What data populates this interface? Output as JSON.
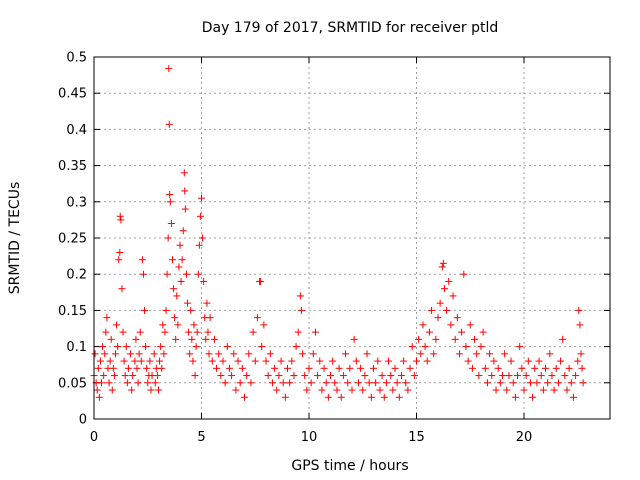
{
  "chart_data": {
    "type": "scatter",
    "title": "Day 179 of 2017, SRMTID for receiver ptld",
    "xlabel": "GPS time / hours",
    "ylabel": "SRMTID / TECUs",
    "xlim": [
      0,
      24
    ],
    "ylim": [
      0,
      0.5
    ],
    "xticks": [
      0,
      5,
      10,
      15,
      20
    ],
    "yticks": [
      0,
      0.05,
      0.1,
      0.15,
      0.2,
      0.25,
      0.3,
      0.35,
      0.4,
      0.45,
      0.5
    ],
    "grid": true,
    "marker": "plus",
    "color": "#ff0000",
    "series": [
      {
        "points": [
          [
            0.0,
            0.06
          ],
          [
            0.05,
            0.09
          ],
          [
            0.1,
            0.05
          ],
          [
            0.15,
            0.04
          ],
          [
            0.2,
            0.07
          ],
          [
            0.25,
            0.03
          ],
          [
            0.3,
            0.08
          ],
          [
            0.35,
            0.05
          ],
          [
            0.4,
            0.1
          ],
          [
            0.45,
            0.06
          ],
          [
            0.5,
            0.09
          ],
          [
            0.55,
            0.12
          ],
          [
            0.6,
            0.14
          ],
          [
            0.65,
            0.07
          ],
          [
            0.7,
            0.05
          ],
          [
            0.75,
            0.08
          ],
          [
            0.8,
            0.11
          ],
          [
            0.85,
            0.04
          ],
          [
            0.9,
            0.07
          ],
          [
            0.95,
            0.06
          ],
          [
            1.0,
            0.09
          ],
          [
            1.05,
            0.13
          ],
          [
            1.1,
            0.1
          ],
          [
            1.15,
            0.22
          ],
          [
            1.2,
            0.23
          ],
          [
            1.22,
            0.28
          ],
          [
            1.25,
            0.275
          ],
          [
            1.3,
            0.18
          ],
          [
            1.35,
            0.12
          ],
          [
            1.4,
            0.08
          ],
          [
            1.45,
            0.06
          ],
          [
            1.5,
            0.1
          ],
          [
            1.55,
            0.05
          ],
          [
            1.6,
            0.07
          ],
          [
            1.7,
            0.09
          ],
          [
            1.75,
            0.04
          ],
          [
            1.8,
            0.06
          ],
          [
            1.9,
            0.08
          ],
          [
            1.95,
            0.11
          ],
          [
            2.0,
            0.07
          ],
          [
            2.05,
            0.05
          ],
          [
            2.1,
            0.09
          ],
          [
            2.15,
            0.12
          ],
          [
            2.2,
            0.08
          ],
          [
            2.25,
            0.22
          ],
          [
            2.3,
            0.2
          ],
          [
            2.35,
            0.15
          ],
          [
            2.4,
            0.1
          ],
          [
            2.45,
            0.07
          ],
          [
            2.5,
            0.05
          ],
          [
            2.55,
            0.06
          ],
          [
            2.6,
            0.08
          ],
          [
            2.65,
            0.04
          ],
          [
            2.7,
            0.06
          ],
          [
            2.8,
            0.09
          ],
          [
            2.85,
            0.05
          ],
          [
            2.9,
            0.07
          ],
          [
            2.95,
            0.06
          ],
          [
            3.0,
            0.04
          ],
          [
            3.05,
            0.08
          ],
          [
            3.1,
            0.1
          ],
          [
            3.15,
            0.07
          ],
          [
            3.2,
            0.13
          ],
          [
            3.25,
            0.09
          ],
          [
            3.3,
            0.12
          ],
          [
            3.35,
            0.15
          ],
          [
            3.4,
            0.2
          ],
          [
            3.45,
            0.25
          ],
          [
            3.48,
            0.484
          ],
          [
            3.5,
            0.407
          ],
          [
            3.52,
            0.31
          ],
          [
            3.55,
            0.3
          ],
          [
            3.6,
            0.27
          ],
          [
            3.65,
            0.22
          ],
          [
            3.7,
            0.18
          ],
          [
            3.75,
            0.14
          ],
          [
            3.8,
            0.11
          ],
          [
            3.85,
            0.17
          ],
          [
            3.9,
            0.13
          ],
          [
            3.95,
            0.21
          ],
          [
            4.0,
            0.24
          ],
          [
            4.05,
            0.19
          ],
          [
            4.1,
            0.22
          ],
          [
            4.15,
            0.26
          ],
          [
            4.2,
            0.34
          ],
          [
            4.22,
            0.315
          ],
          [
            4.25,
            0.29
          ],
          [
            4.3,
            0.2
          ],
          [
            4.35,
            0.16
          ],
          [
            4.4,
            0.12
          ],
          [
            4.45,
            0.09
          ],
          [
            4.5,
            0.15
          ],
          [
            4.55,
            0.11
          ],
          [
            4.6,
            0.08
          ],
          [
            4.65,
            0.13
          ],
          [
            4.7,
            0.06
          ],
          [
            4.75,
            0.1
          ],
          [
            4.8,
            0.12
          ],
          [
            4.85,
            0.2
          ],
          [
            4.9,
            0.24
          ],
          [
            4.95,
            0.28
          ],
          [
            5.0,
            0.305
          ],
          [
            5.05,
            0.25
          ],
          [
            5.1,
            0.19
          ],
          [
            5.15,
            0.14
          ],
          [
            5.2,
            0.11
          ],
          [
            5.25,
            0.16
          ],
          [
            5.3,
            0.12
          ],
          [
            5.35,
            0.09
          ],
          [
            5.4,
            0.14
          ],
          [
            5.5,
            0.08
          ],
          [
            5.6,
            0.11
          ],
          [
            5.7,
            0.07
          ],
          [
            5.8,
            0.09
          ],
          [
            5.9,
            0.06
          ],
          [
            6.0,
            0.08
          ],
          [
            6.1,
            0.05
          ],
          [
            6.2,
            0.1
          ],
          [
            6.3,
            0.07
          ],
          [
            6.4,
            0.06
          ],
          [
            6.5,
            0.09
          ],
          [
            6.6,
            0.04
          ],
          [
            6.7,
            0.08
          ],
          [
            6.8,
            0.05
          ],
          [
            6.9,
            0.07
          ],
          [
            7.0,
            0.03
          ],
          [
            7.1,
            0.06
          ],
          [
            7.2,
            0.09
          ],
          [
            7.3,
            0.05
          ],
          [
            7.4,
            0.12
          ],
          [
            7.5,
            0.08
          ],
          [
            7.6,
            0.14
          ],
          [
            7.7,
            0.19
          ],
          [
            7.75,
            0.19
          ],
          [
            7.8,
            0.1
          ],
          [
            7.9,
            0.13
          ],
          [
            8.0,
            0.08
          ],
          [
            8.1,
            0.06
          ],
          [
            8.2,
            0.09
          ],
          [
            8.3,
            0.05
          ],
          [
            8.4,
            0.07
          ],
          [
            8.5,
            0.04
          ],
          [
            8.6,
            0.06
          ],
          [
            8.7,
            0.08
          ],
          [
            8.8,
            0.05
          ],
          [
            8.9,
            0.03
          ],
          [
            9.0,
            0.07
          ],
          [
            9.1,
            0.05
          ],
          [
            9.2,
            0.08
          ],
          [
            9.3,
            0.06
          ],
          [
            9.4,
            0.1
          ],
          [
            9.5,
            0.12
          ],
          [
            9.6,
            0.17
          ],
          [
            9.65,
            0.15
          ],
          [
            9.7,
            0.09
          ],
          [
            9.8,
            0.06
          ],
          [
            9.9,
            0.04
          ],
          [
            10.0,
            0.07
          ],
          [
            10.1,
            0.05
          ],
          [
            10.2,
            0.09
          ],
          [
            10.3,
            0.12
          ],
          [
            10.4,
            0.06
          ],
          [
            10.5,
            0.08
          ],
          [
            10.6,
            0.04
          ],
          [
            10.7,
            0.07
          ],
          [
            10.8,
            0.05
          ],
          [
            10.9,
            0.03
          ],
          [
            11.0,
            0.06
          ],
          [
            11.1,
            0.08
          ],
          [
            11.2,
            0.05
          ],
          [
            11.3,
            0.04
          ],
          [
            11.4,
            0.07
          ],
          [
            11.5,
            0.03
          ],
          [
            11.6,
            0.06
          ],
          [
            11.7,
            0.09
          ],
          [
            11.8,
            0.05
          ],
          [
            11.9,
            0.07
          ],
          [
            12.0,
            0.04
          ],
          [
            12.1,
            0.11
          ],
          [
            12.2,
            0.08
          ],
          [
            12.3,
            0.05
          ],
          [
            12.4,
            0.07
          ],
          [
            12.5,
            0.04
          ],
          [
            12.6,
            0.06
          ],
          [
            12.7,
            0.09
          ],
          [
            12.8,
            0.05
          ],
          [
            12.9,
            0.03
          ],
          [
            13.0,
            0.07
          ],
          [
            13.1,
            0.05
          ],
          [
            13.2,
            0.08
          ],
          [
            13.3,
            0.04
          ],
          [
            13.4,
            0.06
          ],
          [
            13.5,
            0.03
          ],
          [
            13.6,
            0.05
          ],
          [
            13.7,
            0.08
          ],
          [
            13.8,
            0.06
          ],
          [
            13.9,
            0.04
          ],
          [
            14.0,
            0.07
          ],
          [
            14.1,
            0.05
          ],
          [
            14.2,
            0.03
          ],
          [
            14.3,
            0.06
          ],
          [
            14.4,
            0.08
          ],
          [
            14.5,
            0.05
          ],
          [
            14.6,
            0.04
          ],
          [
            14.7,
            0.07
          ],
          [
            14.8,
            0.1
          ],
          [
            14.9,
            0.06
          ],
          [
            15.0,
            0.08
          ],
          [
            15.1,
            0.11
          ],
          [
            15.2,
            0.09
          ],
          [
            15.3,
            0.13
          ],
          [
            15.4,
            0.1
          ],
          [
            15.5,
            0.08
          ],
          [
            15.6,
            0.12
          ],
          [
            15.7,
            0.15
          ],
          [
            15.8,
            0.09
          ],
          [
            15.9,
            0.11
          ],
          [
            16.0,
            0.14
          ],
          [
            16.1,
            0.16
          ],
          [
            16.2,
            0.21
          ],
          [
            16.25,
            0.215
          ],
          [
            16.3,
            0.18
          ],
          [
            16.4,
            0.15
          ],
          [
            16.5,
            0.19
          ],
          [
            16.6,
            0.13
          ],
          [
            16.7,
            0.17
          ],
          [
            16.8,
            0.11
          ],
          [
            16.9,
            0.14
          ],
          [
            17.0,
            0.09
          ],
          [
            17.1,
            0.12
          ],
          [
            17.2,
            0.2
          ],
          [
            17.3,
            0.1
          ],
          [
            17.4,
            0.08
          ],
          [
            17.5,
            0.13
          ],
          [
            17.6,
            0.07
          ],
          [
            17.7,
            0.11
          ],
          [
            17.8,
            0.09
          ],
          [
            17.9,
            0.06
          ],
          [
            18.0,
            0.1
          ],
          [
            18.1,
            0.12
          ],
          [
            18.2,
            0.07
          ],
          [
            18.3,
            0.05
          ],
          [
            18.4,
            0.09
          ],
          [
            18.5,
            0.06
          ],
          [
            18.6,
            0.08
          ],
          [
            18.7,
            0.04
          ],
          [
            18.8,
            0.07
          ],
          [
            18.9,
            0.05
          ],
          [
            19.0,
            0.06
          ],
          [
            19.1,
            0.09
          ],
          [
            19.2,
            0.04
          ],
          [
            19.3,
            0.06
          ],
          [
            19.4,
            0.08
          ],
          [
            19.5,
            0.05
          ],
          [
            19.6,
            0.03
          ],
          [
            19.7,
            0.06
          ],
          [
            19.8,
            0.1
          ],
          [
            19.9,
            0.07
          ],
          [
            20.0,
            0.04
          ],
          [
            20.1,
            0.06
          ],
          [
            20.2,
            0.08
          ],
          [
            20.3,
            0.05
          ],
          [
            20.4,
            0.03
          ],
          [
            20.5,
            0.07
          ],
          [
            20.6,
            0.05
          ],
          [
            20.7,
            0.08
          ],
          [
            20.8,
            0.06
          ],
          [
            20.9,
            0.04
          ],
          [
            21.0,
            0.07
          ],
          [
            21.1,
            0.05
          ],
          [
            21.2,
            0.09
          ],
          [
            21.3,
            0.06
          ],
          [
            21.4,
            0.04
          ],
          [
            21.5,
            0.07
          ],
          [
            21.6,
            0.05
          ],
          [
            21.7,
            0.08
          ],
          [
            21.8,
            0.11
          ],
          [
            21.9,
            0.06
          ],
          [
            22.0,
            0.04
          ],
          [
            22.1,
            0.07
          ],
          [
            22.2,
            0.05
          ],
          [
            22.3,
            0.03
          ],
          [
            22.4,
            0.06
          ],
          [
            22.5,
            0.08
          ],
          [
            22.55,
            0.15
          ],
          [
            22.6,
            0.13
          ],
          [
            22.65,
            0.09
          ],
          [
            22.7,
            0.07
          ],
          [
            22.75,
            0.05
          ]
        ]
      }
    ]
  }
}
